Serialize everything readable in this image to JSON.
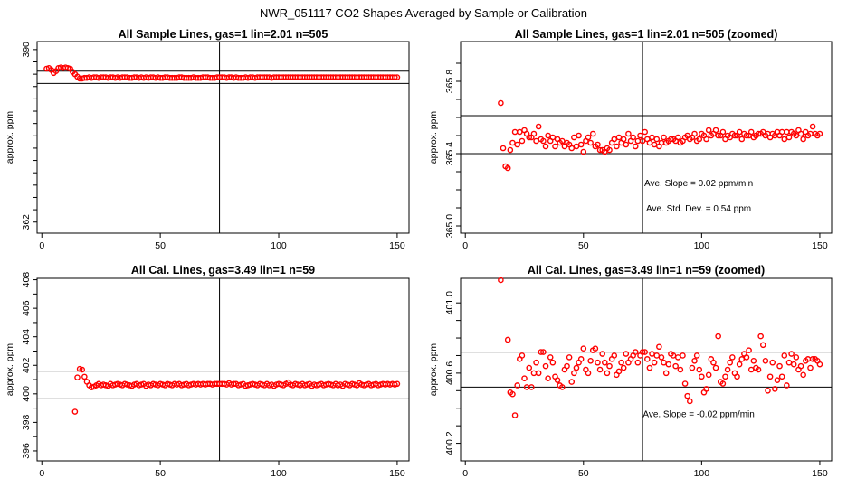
{
  "figure": {
    "title": "NWR_051117  CO2 Shapes Averaged by Sample or Calibration"
  },
  "colors": {
    "points": "#ff0000",
    "lines": "#000000"
  },
  "chart_data": [
    {
      "type": "scatter",
      "title": "All Sample Lines, gas=1 lin=2.01 n=505",
      "xlabel": "",
      "ylabel": "approx. ppm",
      "xlim": [
        -2,
        155
      ],
      "ylim": [
        360.2,
        391.3
      ],
      "xticks": [
        0,
        50,
        100,
        150
      ],
      "yticks": [
        362,
        364,
        366,
        368,
        370,
        372,
        374,
        376,
        378,
        380,
        382,
        384,
        386,
        388,
        390
      ],
      "ytick_labels": [
        "362",
        "",
        "",
        "",
        "",
        "",
        "",
        "",
        "",
        "",
        "",
        "",
        "",
        "",
        "390"
      ],
      "hlines": [
        384.5,
        386.5
      ],
      "vline": 75,
      "annotations": [],
      "x": [
        2,
        3,
        4,
        5,
        6,
        7,
        8,
        9,
        10,
        11,
        12,
        13,
        14,
        15,
        16,
        17,
        18,
        19,
        20,
        21,
        22,
        23,
        24,
        25,
        26,
        27,
        28,
        29,
        30,
        31,
        32,
        33,
        34,
        35,
        36,
        37,
        38,
        39,
        40,
        41,
        42,
        43,
        44,
        45,
        46,
        47,
        48,
        49,
        50,
        51,
        52,
        53,
        54,
        55,
        56,
        57,
        58,
        59,
        60,
        61,
        62,
        63,
        64,
        65,
        66,
        67,
        68,
        69,
        70,
        71,
        72,
        73,
        74,
        75,
        76,
        77,
        78,
        79,
        80,
        81,
        82,
        83,
        84,
        85,
        86,
        87,
        88,
        89,
        90,
        91,
        92,
        93,
        94,
        95,
        96,
        97,
        98,
        99,
        100,
        101,
        102,
        103,
        104,
        105,
        106,
        107,
        108,
        109,
        110,
        111,
        112,
        113,
        114,
        115,
        116,
        117,
        118,
        119,
        120,
        121,
        122,
        123,
        124,
        125,
        126,
        127,
        128,
        129,
        130,
        131,
        132,
        133,
        134,
        135,
        136,
        137,
        138,
        139,
        140,
        141,
        142,
        143,
        144,
        145,
        146,
        147,
        148,
        149,
        150
      ],
      "y": [
        386.9,
        387.0,
        386.7,
        386.2,
        386.5,
        387.0,
        387.1,
        387.0,
        387.1,
        387.0,
        386.9,
        386.4,
        386.0,
        385.6,
        385.3,
        385.3,
        385.4,
        385.4,
        385.5,
        385.4,
        385.5,
        385.5,
        385.4,
        385.5,
        385.5,
        385.5,
        385.4,
        385.5,
        385.5,
        385.4,
        385.5,
        385.4,
        385.5,
        385.5,
        385.5,
        385.4,
        385.4,
        385.5,
        385.5,
        385.4,
        385.5,
        385.4,
        385.5,
        385.4,
        385.5,
        385.5,
        385.4,
        385.5,
        385.4,
        385.4,
        385.5,
        385.5,
        385.4,
        385.4,
        385.4,
        385.4,
        385.5,
        385.5,
        385.4,
        385.4,
        385.4,
        385.4,
        385.5,
        385.4,
        385.4,
        385.4,
        385.5,
        385.5,
        385.5,
        385.4,
        385.4,
        385.4,
        385.5,
        385.5,
        385.5,
        385.5,
        385.4,
        385.5,
        385.5,
        385.4,
        385.5,
        385.4,
        385.4,
        385.4,
        385.5,
        385.4,
        385.5,
        385.5,
        385.4,
        385.5,
        385.5,
        385.5,
        385.5,
        385.5,
        385.5,
        385.4,
        385.5,
        385.5,
        385.5,
        385.5,
        385.5,
        385.5,
        385.5,
        385.5,
        385.5,
        385.5,
        385.5,
        385.5,
        385.5,
        385.5,
        385.5,
        385.5,
        385.5,
        385.5,
        385.5,
        385.5,
        385.5,
        385.5,
        385.5,
        385.5,
        385.5,
        385.5,
        385.5,
        385.5,
        385.5,
        385.5,
        385.5,
        385.5,
        385.5,
        385.5,
        385.5,
        385.5,
        385.5,
        385.5,
        385.5,
        385.5,
        385.5,
        385.5,
        385.5,
        385.5,
        385.5,
        385.5,
        385.5,
        385.5,
        385.5,
        385.5,
        385.5,
        385.5,
        385.5
      ]
    },
    {
      "type": "scatter",
      "title": "All Sample Lines, gas=1 lin=2.01 n=505 (zoomed)",
      "xlabel": "",
      "ylabel": "approx. ppm",
      "xlim": [
        -2,
        155
      ],
      "ylim": [
        364.96,
        366.02
      ],
      "xticks": [
        0,
        50,
        100,
        150
      ],
      "yticks": [
        365.0,
        365.1,
        365.2,
        365.3,
        365.4,
        365.5,
        365.6,
        365.7,
        365.8,
        365.9
      ],
      "ytick_labels": [
        "365.0",
        "",
        "",
        "",
        "365.4",
        "",
        "",
        "",
        "365.8",
        ""
      ],
      "hlines": [
        365.4,
        365.61
      ],
      "vline": 75,
      "annotations": [
        {
          "text": "Ave. Slope =  0.02  ppm/min",
          "x": 75,
          "y": 365.24
        },
        {
          "text": "Ave. Std. Dev. =  0.54  ppm",
          "x": 75,
          "y": 365.1
        }
      ],
      "x": [
        15,
        16,
        17,
        18,
        19,
        20,
        21,
        22,
        23,
        24,
        25,
        26,
        27,
        28,
        29,
        30,
        31,
        32,
        33,
        34,
        35,
        36,
        37,
        38,
        39,
        40,
        41,
        42,
        43,
        44,
        45,
        46,
        47,
        48,
        49,
        50,
        51,
        52,
        53,
        54,
        55,
        56,
        57,
        58,
        59,
        60,
        61,
        62,
        63,
        64,
        65,
        66,
        67,
        68,
        69,
        70,
        71,
        72,
        73,
        74,
        75,
        76,
        77,
        78,
        79,
        80,
        81,
        82,
        83,
        84,
        85,
        86,
        87,
        88,
        89,
        90,
        91,
        92,
        93,
        94,
        95,
        96,
        97,
        98,
        99,
        100,
        101,
        102,
        103,
        104,
        105,
        106,
        107,
        108,
        109,
        110,
        111,
        112,
        113,
        114,
        115,
        116,
        117,
        118,
        119,
        120,
        121,
        122,
        123,
        124,
        125,
        126,
        127,
        128,
        129,
        130,
        131,
        132,
        133,
        134,
        135,
        136,
        137,
        138,
        139,
        140,
        141,
        142,
        143,
        144,
        145,
        146,
        147,
        148,
        149,
        150
      ],
      "y": [
        365.68,
        365.43,
        365.33,
        365.32,
        365.42,
        365.46,
        365.52,
        365.45,
        365.52,
        365.47,
        365.53,
        365.51,
        365.49,
        365.49,
        365.51,
        365.47,
        365.55,
        365.48,
        365.47,
        365.44,
        365.5,
        365.47,
        365.49,
        365.44,
        365.48,
        365.46,
        365.47,
        365.44,
        365.46,
        365.45,
        365.43,
        365.49,
        365.44,
        365.5,
        365.45,
        365.41,
        365.47,
        365.49,
        365.46,
        365.51,
        365.44,
        365.45,
        365.42,
        365.42,
        365.41,
        365.43,
        365.42,
        365.46,
        365.48,
        365.44,
        365.49,
        365.46,
        365.48,
        365.45,
        365.51,
        365.47,
        365.49,
        365.44,
        365.47,
        365.5,
        365.47,
        365.52,
        365.48,
        365.46,
        365.49,
        365.45,
        365.48,
        365.44,
        365.46,
        365.49,
        365.46,
        365.47,
        365.48,
        365.48,
        365.47,
        365.49,
        365.46,
        365.47,
        365.49,
        365.5,
        365.48,
        365.49,
        365.51,
        365.47,
        365.48,
        365.51,
        365.5,
        365.48,
        365.53,
        365.5,
        365.51,
        365.53,
        365.5,
        365.5,
        365.52,
        365.48,
        365.5,
        365.49,
        365.51,
        365.5,
        365.5,
        365.52,
        365.48,
        365.51,
        365.5,
        365.5,
        365.52,
        365.49,
        365.5,
        365.51,
        365.51,
        365.52,
        365.5,
        365.51,
        365.49,
        365.51,
        365.5,
        365.52,
        365.5,
        365.52,
        365.48,
        365.52,
        365.49,
        365.52,
        365.51,
        365.5,
        365.53,
        365.51,
        365.48,
        365.52,
        365.5,
        365.51,
        365.55,
        365.51,
        365.5,
        365.51
      ]
    },
    {
      "type": "scatter",
      "title": "All Cal. Lines, gas=3.49 lin=1 n=59",
      "xlabel": "",
      "ylabel": "approx. ppm",
      "xlim": [
        -2,
        155
      ],
      "ylim": [
        395.3,
        408.1
      ],
      "xticks": [
        0,
        50,
        100,
        150
      ],
      "yticks": [
        396,
        397,
        398,
        399,
        400,
        401,
        402,
        403,
        404,
        405,
        406,
        407,
        408
      ],
      "ytick_labels": [
        "396",
        "",
        "398",
        "",
        "400",
        "",
        "402",
        "",
        "404",
        "",
        "406",
        "",
        "408"
      ],
      "hlines": [
        399.65,
        401.6
      ],
      "vline": 75,
      "annotations": [],
      "x": [
        14,
        15,
        16,
        17,
        18,
        19,
        20,
        21,
        22,
        23,
        24,
        25,
        26,
        27,
        28,
        29,
        30,
        31,
        32,
        33,
        34,
        35,
        36,
        37,
        38,
        39,
        40,
        41,
        42,
        43,
        44,
        45,
        46,
        47,
        48,
        49,
        50,
        51,
        52,
        53,
        54,
        55,
        56,
        57,
        58,
        59,
        60,
        61,
        62,
        63,
        64,
        65,
        66,
        67,
        68,
        69,
        70,
        71,
        72,
        73,
        74,
        75,
        76,
        77,
        78,
        79,
        80,
        81,
        82,
        83,
        84,
        85,
        86,
        87,
        88,
        89,
        90,
        91,
        92,
        93,
        94,
        95,
        96,
        97,
        98,
        99,
        100,
        101,
        102,
        103,
        104,
        105,
        106,
        107,
        108,
        109,
        110,
        111,
        112,
        113,
        114,
        115,
        116,
        117,
        118,
        119,
        120,
        121,
        122,
        123,
        124,
        125,
        126,
        127,
        128,
        129,
        130,
        131,
        132,
        133,
        134,
        135,
        136,
        137,
        138,
        139,
        140,
        141,
        142,
        143,
        144,
        145,
        146,
        147,
        148,
        149,
        150
      ],
      "y": [
        398.75,
        401.15,
        401.75,
        401.7,
        401.2,
        400.85,
        400.6,
        400.45,
        400.5,
        400.6,
        400.7,
        400.6,
        400.65,
        400.6,
        400.55,
        400.7,
        400.6,
        400.65,
        400.7,
        400.65,
        400.6,
        400.7,
        400.65,
        400.6,
        400.55,
        400.65,
        400.7,
        400.6,
        400.65,
        400.7,
        400.55,
        400.65,
        400.6,
        400.7,
        400.65,
        400.6,
        400.7,
        400.65,
        400.6,
        400.7,
        400.65,
        400.6,
        400.7,
        400.65,
        400.7,
        400.6,
        400.65,
        400.7,
        400.6,
        400.65,
        400.7,
        400.65,
        400.7,
        400.65,
        400.7,
        400.65,
        400.7,
        400.7,
        400.65,
        400.7,
        400.7,
        400.7,
        400.7,
        400.7,
        400.65,
        400.75,
        400.65,
        400.7,
        400.7,
        400.6,
        400.65,
        400.7,
        400.55,
        400.6,
        400.65,
        400.7,
        400.65,
        400.6,
        400.7,
        400.65,
        400.6,
        400.7,
        400.6,
        400.65,
        400.55,
        400.65,
        400.7,
        400.65,
        400.6,
        400.7,
        400.8,
        400.65,
        400.6,
        400.7,
        400.65,
        400.6,
        400.7,
        400.6,
        400.65,
        400.7,
        400.55,
        400.65,
        400.6,
        400.65,
        400.7,
        400.6,
        400.65,
        400.7,
        400.65,
        400.6,
        400.7,
        400.6,
        400.65,
        400.55,
        400.7,
        400.65,
        400.6,
        400.7,
        400.65,
        400.6,
        400.75,
        400.65,
        400.6,
        400.65,
        400.7,
        400.6,
        400.65,
        400.7,
        400.6,
        400.65,
        400.7,
        400.65,
        400.7,
        400.65,
        400.7,
        400.65,
        400.7
      ]
    },
    {
      "type": "scatter",
      "title": "All Cal. Lines, gas=3.49 lin=1 n=59 (zoomed)",
      "xlabel": "",
      "ylabel": "approx. ppm",
      "xlim": [
        -2,
        155
      ],
      "ylim": [
        400.1,
        401.14
      ],
      "xticks": [
        0,
        50,
        100,
        150
      ],
      "yticks": [
        400.2,
        400.3,
        400.4,
        400.5,
        400.6,
        400.7,
        400.8,
        400.9,
        401.0
      ],
      "ytick_labels": [
        "400.2",
        "",
        "",
        "",
        "400.6",
        "",
        "",
        "",
        "401.0"
      ],
      "hlines": [
        400.52,
        400.72
      ],
      "vline": 75,
      "annotations": [
        {
          "text": "Ave. Slope =  -0.02  ppm/min",
          "x": 75,
          "y": 400.37
        }
      ],
      "x": [
        15,
        18,
        19,
        20,
        21,
        22,
        23,
        24,
        25,
        26,
        27,
        28,
        29,
        30,
        31,
        32,
        33,
        34,
        35,
        36,
        37,
        38,
        39,
        40,
        41,
        42,
        43,
        44,
        45,
        46,
        47,
        48,
        49,
        50,
        51,
        52,
        53,
        54,
        55,
        56,
        57,
        58,
        59,
        60,
        61,
        62,
        63,
        64,
        65,
        66,
        67,
        68,
        69,
        70,
        71,
        72,
        73,
        74,
        75,
        76,
        77,
        78,
        79,
        80,
        81,
        82,
        83,
        84,
        85,
        86,
        87,
        88,
        89,
        90,
        91,
        92,
        93,
        94,
        95,
        96,
        97,
        98,
        99,
        100,
        101,
        102,
        103,
        104,
        105,
        106,
        107,
        108,
        109,
        110,
        111,
        112,
        113,
        114,
        115,
        116,
        117,
        118,
        119,
        120,
        121,
        122,
        123,
        124,
        125,
        126,
        127,
        128,
        129,
        130,
        131,
        132,
        133,
        134,
        135,
        136,
        137,
        138,
        139,
        140,
        141,
        142,
        143,
        144,
        145,
        146,
        147,
        148,
        149,
        150
      ],
      "y": [
        401.13,
        400.79,
        400.49,
        400.48,
        400.36,
        400.53,
        400.68,
        400.7,
        400.57,
        400.52,
        400.63,
        400.52,
        400.6,
        400.66,
        400.6,
        400.72,
        400.72,
        400.64,
        400.57,
        400.69,
        400.66,
        400.58,
        400.56,
        400.53,
        400.52,
        400.62,
        400.64,
        400.69,
        400.55,
        400.6,
        400.63,
        400.66,
        400.68,
        400.74,
        400.62,
        400.6,
        400.67,
        400.73,
        400.74,
        400.66,
        400.62,
        400.71,
        400.66,
        400.6,
        400.64,
        400.68,
        400.7,
        400.59,
        400.61,
        400.66,
        400.63,
        400.71,
        400.66,
        400.68,
        400.7,
        400.72,
        400.66,
        400.7,
        400.72,
        400.72,
        400.68,
        400.63,
        400.71,
        400.66,
        400.7,
        400.75,
        400.69,
        400.66,
        400.6,
        400.65,
        400.71,
        400.7,
        400.64,
        400.69,
        400.62,
        400.7,
        400.54,
        400.47,
        400.44,
        400.63,
        400.67,
        400.7,
        400.62,
        400.58,
        400.49,
        400.51,
        400.59,
        400.68,
        400.66,
        400.63,
        400.81,
        400.55,
        400.54,
        400.58,
        400.62,
        400.66,
        400.69,
        400.6,
        400.58,
        400.65,
        400.68,
        400.71,
        400.69,
        400.73,
        400.62,
        400.67,
        400.63,
        400.62,
        400.81,
        400.76,
        400.67,
        400.5,
        400.58,
        400.66,
        400.51,
        400.56,
        400.64,
        400.58,
        400.7,
        400.53,
        400.66,
        400.71,
        400.65,
        400.69,
        400.62,
        400.64,
        400.59,
        400.67,
        400.68,
        400.63,
        400.68,
        400.68,
        400.67,
        400.65
      ]
    }
  ]
}
